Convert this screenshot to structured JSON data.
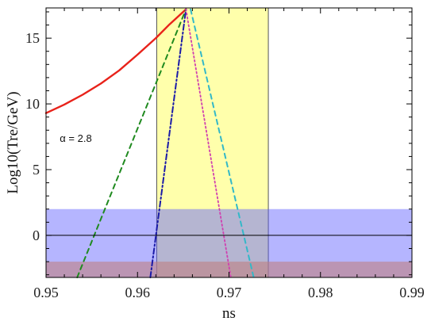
{
  "chart_data": {
    "type": "line",
    "xlabel": "ns",
    "ylabel": "Log10(Tre/GeV)",
    "xlim": [
      0.95,
      0.99
    ],
    "ylim": [
      -3.2,
      17.3
    ],
    "x_ticks": [
      0.95,
      0.96,
      0.97,
      0.98,
      0.99
    ],
    "x_tick_labels": [
      "0.95",
      "0.96",
      "0.97",
      "0.98",
      "0.99"
    ],
    "y_ticks": [
      0,
      5,
      10,
      15
    ],
    "y_tick_labels": [
      "0",
      "5",
      "10",
      "15"
    ],
    "annotation": "α = 2.8",
    "annotation_at": {
      "x": 0.9515,
      "y": 7.1
    },
    "grid": false,
    "regions": [
      {
        "kind": "vband",
        "x_from": 0.9621,
        "x_to": 0.9743,
        "color": "#ffff66",
        "opacity": 0.55,
        "edge_color": "#555555"
      },
      {
        "kind": "hband",
        "y_from": -3.2,
        "y_to": 2.0,
        "color": "#5a5aff",
        "opacity": 0.45
      },
      {
        "kind": "hband",
        "y_from": -3.2,
        "y_to": -2.0,
        "color": "#c08080",
        "opacity": 0.6
      }
    ],
    "reference_lines": [
      {
        "kind": "hline",
        "y": 0,
        "color": "#000000"
      }
    ],
    "series": [
      {
        "color": "#e8221a",
        "dash": "solid",
        "width": 2.4,
        "x": [
          0.95,
          0.952,
          0.954,
          0.956,
          0.958,
          0.96,
          0.962,
          0.9635,
          0.9653
        ],
        "y": [
          9.3,
          9.95,
          10.7,
          11.55,
          12.55,
          13.75,
          15.0,
          16.05,
          17.2
        ]
      },
      {
        "color": "#1f8a1f",
        "dash": "6,5",
        "width": 2.0,
        "x": [
          0.9534,
          0.9653
        ],
        "y": [
          -3.2,
          17.2
        ]
      },
      {
        "color": "#1a1aa8",
        "dash": "7,3,2,3",
        "width": 2.0,
        "x": [
          0.9614,
          0.9653
        ],
        "y": [
          -3.2,
          17.2
        ]
      },
      {
        "color": "#d040b0",
        "dash": "2,3",
        "width": 1.8,
        "x": [
          0.9653,
          0.9702
        ],
        "y": [
          17.2,
          -3.2
        ]
      },
      {
        "color": "#33b8c8",
        "dash": "6,5",
        "width": 2.0,
        "x": [
          0.9658,
          0.9727
        ],
        "y": [
          17.2,
          -3.2
        ]
      }
    ]
  }
}
